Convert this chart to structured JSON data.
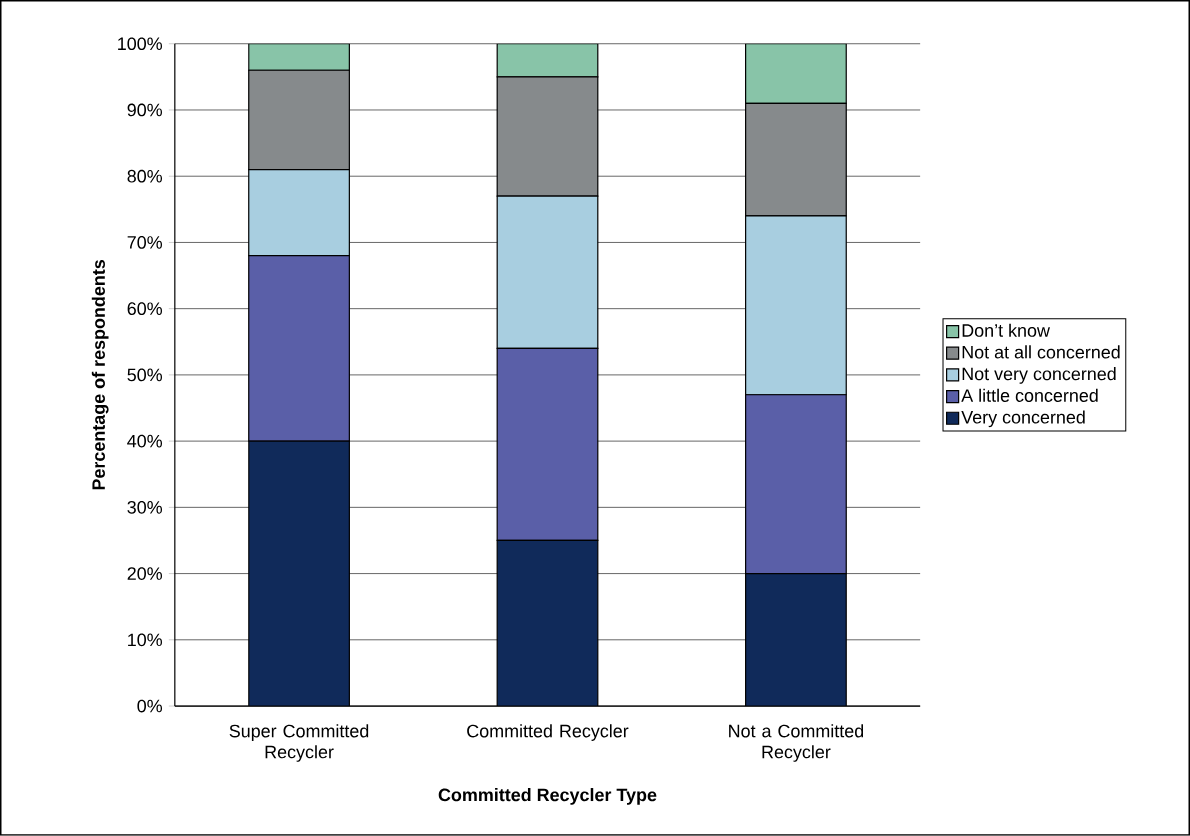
{
  "chart_data": {
    "type": "bar",
    "stacked": true,
    "xlabel": "Committed Recycler Type",
    "ylabel": "Percentage of respondents",
    "categories": [
      "Super Committed Recycler",
      "Committed Recycler",
      "Not a Committed Recycler"
    ],
    "series": [
      {
        "name": "Very concerned",
        "color": "#102a5a",
        "values": [
          40,
          25,
          20
        ]
      },
      {
        "name": "A little concerned",
        "color": "#5a5fa8",
        "values": [
          28,
          29,
          27
        ]
      },
      {
        "name": "Not very concerned",
        "color": "#a8cee0",
        "values": [
          13,
          23,
          27
        ]
      },
      {
        "name": "Not at all concerned",
        "color": "#868a8c",
        "values": [
          15,
          18,
          17
        ]
      },
      {
        "name": "Don’t know",
        "color": "#88c4a8",
        "values": [
          4,
          5,
          9
        ]
      }
    ],
    "ylim": [
      0,
      100
    ],
    "yticks": [
      {
        "value": 0,
        "label": "0%"
      },
      {
        "value": 10,
        "label": "10%"
      },
      {
        "value": 20,
        "label": "20%"
      },
      {
        "value": 30,
        "label": "30%"
      },
      {
        "value": 40,
        "label": "40%"
      },
      {
        "value": 50,
        "label": "50%"
      },
      {
        "value": 60,
        "label": "60%"
      },
      {
        "value": 70,
        "label": "70%"
      },
      {
        "value": 80,
        "label": "80%"
      },
      {
        "value": 90,
        "label": "90%"
      },
      {
        "value": 100,
        "label": "100%"
      }
    ],
    "grid": "y",
    "legend": "right"
  }
}
